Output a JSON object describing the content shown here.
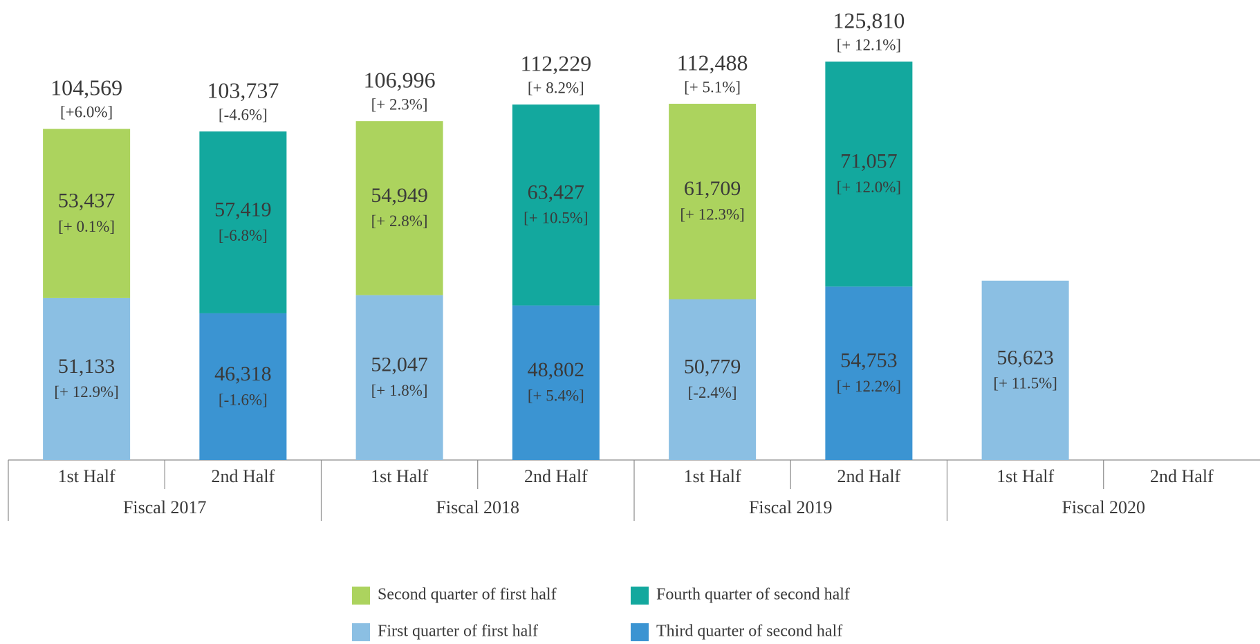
{
  "chart_data": {
    "type": "stacked_bar",
    "groups": [
      "Fiscal 2017",
      "Fiscal 2018",
      "Fiscal 2019",
      "Fiscal 2020"
    ],
    "categories": [
      "1st Half",
      "2nd Half",
      "1st Half",
      "2nd Half",
      "1st Half",
      "2nd Half",
      "1st Half",
      "2nd Half"
    ],
    "series": [
      {
        "name": "First quarter of first half",
        "color": "#8bbfe3",
        "values": [
          51133,
          null,
          52047,
          null,
          50779,
          null,
          56623,
          null
        ],
        "value_labels": [
          "51,133",
          null,
          "52,047",
          null,
          "50,779",
          null,
          "56,623",
          null
        ],
        "growth": [
          "[+ 12.9%]",
          null,
          "[+ 1.8%]",
          null,
          "[-2.4%]",
          null,
          "[+ 11.5%]",
          null
        ]
      },
      {
        "name": "Second quarter of first half",
        "color": "#acd35e",
        "values": [
          53437,
          null,
          54949,
          null,
          61709,
          null,
          null,
          null
        ],
        "value_labels": [
          "53,437",
          null,
          "54,949",
          null,
          "61,709",
          null,
          null,
          null
        ],
        "growth": [
          "[+ 0.1%]",
          null,
          "[+ 2.8%]",
          null,
          "[+ 12.3%]",
          null,
          null,
          null
        ]
      },
      {
        "name": "Third quarter of second half",
        "color": "#3b94d2",
        "values": [
          null,
          46318,
          null,
          48802,
          null,
          54753,
          null,
          null
        ],
        "value_labels": [
          null,
          "46,318",
          null,
          "48,802",
          null,
          "54,753",
          null,
          null
        ],
        "growth": [
          null,
          "[-1.6%]",
          null,
          "[+ 5.4%]",
          null,
          "[+ 12.2%]",
          null,
          null
        ]
      },
      {
        "name": "Fourth quarter of second half",
        "color": "#13a89e",
        "values": [
          null,
          57419,
          null,
          63427,
          null,
          71057,
          null,
          null
        ],
        "value_labels": [
          null,
          "57,419",
          null,
          "63,427",
          null,
          "71,057",
          null,
          null
        ],
        "growth": [
          null,
          "[-6.8%]",
          null,
          "[+ 10.5%]",
          null,
          "[+ 12.0%]",
          null,
          null
        ]
      }
    ],
    "totals": {
      "values": [
        104569,
        103737,
        106996,
        112229,
        112488,
        125810,
        null,
        null
      ],
      "value_labels": [
        "104,569",
        "103,737",
        "106,996",
        "112,229",
        "112,488",
        "125,810",
        null,
        null
      ],
      "growth": [
        "[+6.0%]",
        "[-4.6%]",
        "[+ 2.3%]",
        "[+ 8.2%]",
        "[+ 5.1%]",
        "[+ 12.1%]",
        null,
        null
      ]
    }
  }
}
